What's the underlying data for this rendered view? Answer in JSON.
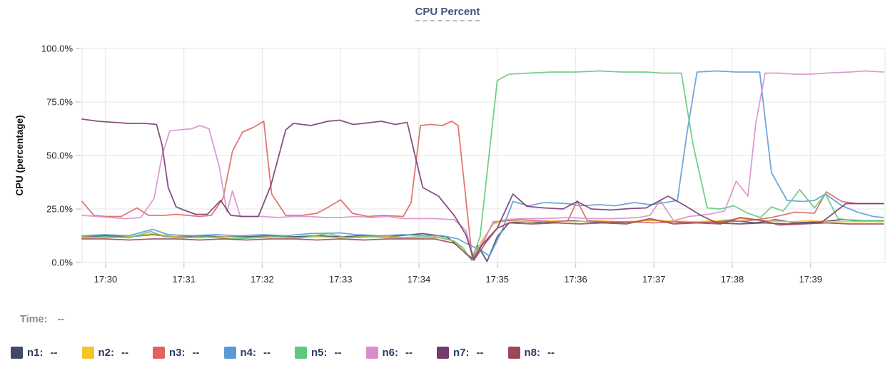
{
  "title": {
    "text": "CPU Percent"
  },
  "time_row": {
    "label": "Time:",
    "value": "--"
  },
  "legend": {
    "items": [
      {
        "label": "n1:",
        "value": "--"
      },
      {
        "label": "n2:",
        "value": "--"
      },
      {
        "label": "n3:",
        "value": "--"
      },
      {
        "label": "n4:",
        "value": "--"
      },
      {
        "label": "n5:",
        "value": "--"
      },
      {
        "label": "n6:",
        "value": "--"
      },
      {
        "label": "n7:",
        "value": "--"
      },
      {
        "label": "n8:",
        "value": "--"
      }
    ]
  },
  "chart_data": {
    "type": "line",
    "title": "CPU Percent",
    "xlabel": "",
    "ylabel": "CPU (percentage)",
    "ylim": [
      0,
      100
    ],
    "y_tick_values": [
      0,
      25,
      50,
      75,
      100
    ],
    "y_ticks": [
      "0.0%",
      "25.0%",
      "50.0%",
      "75.0%",
      "100.0%"
    ],
    "x_ticks": [
      "17:30",
      "17:31",
      "17:32",
      "17:33",
      "17:34",
      "17:35",
      "17:36",
      "17:37",
      "17:38",
      "17:39"
    ],
    "x_tick_minutes": [
      0,
      1,
      2,
      3,
      4,
      5,
      6,
      7,
      8,
      9
    ],
    "xlim_minutes": [
      -0.3,
      9.95
    ],
    "x_unit": "minutes after 17:30",
    "grid": true,
    "colors": {
      "grid": "#e9e9ec",
      "tick": "#cfd0d6",
      "background": "#ffffff"
    },
    "series": [
      {
        "name": "n1",
        "color": "#3f4b66",
        "x": [
          -0.3,
          0,
          0.3,
          0.6,
          0.9,
          1.2,
          1.5,
          1.8,
          2.1,
          2.4,
          2.7,
          3.0,
          3.3,
          3.6,
          3.9,
          4.05,
          4.35,
          4.5,
          4.6,
          4.68,
          4.75,
          4.87,
          5.0,
          5.15,
          5.35,
          5.6,
          5.9,
          6.2,
          6.5,
          6.8,
          6.9,
          7.1,
          7.4,
          7.7,
          8.0,
          8.3,
          8.55,
          8.8,
          9.1,
          9.4,
          9.7,
          9.93
        ],
        "y": [
          12,
          12.5,
          12,
          13,
          12,
          12.5,
          12,
          12,
          12.5,
          12,
          12.5,
          12,
          12.5,
          12,
          13,
          13.5,
          12,
          8,
          4,
          2,
          8,
          0.5,
          12,
          18.5,
          19,
          18.5,
          19.5,
          19,
          18.5,
          19,
          19.8,
          19.5,
          18.5,
          19,
          19.5,
          18.5,
          20,
          18.5,
          19,
          20,
          19.5,
          19.5
        ]
      },
      {
        "name": "n2",
        "color": "#f5c425",
        "x": [
          -0.3,
          0,
          0.3,
          0.6,
          0.9,
          1.2,
          1.5,
          1.8,
          2.1,
          2.4,
          2.7,
          3.0,
          3.3,
          3.6,
          3.9,
          4.2,
          4.45,
          4.67,
          4.8,
          4.95,
          5.1,
          5.4,
          5.7,
          6.0,
          6.3,
          6.6,
          6.9,
          7.2,
          7.5,
          7.8,
          8.1,
          8.4,
          8.7,
          9.0,
          9.3,
          9.6,
          9.93
        ],
        "y": [
          12,
          11.5,
          12,
          13.5,
          12,
          11.5,
          12,
          11.5,
          12,
          11.5,
          12,
          11.5,
          12,
          12,
          11.5,
          12,
          10,
          1.5,
          10,
          18,
          19.5,
          19,
          19.5,
          19,
          19.5,
          19,
          19.5,
          19.5,
          19,
          19.5,
          20.5,
          19.5,
          19,
          19.5,
          19,
          19,
          19
        ]
      },
      {
        "name": "n3",
        "color": "#e0635f",
        "x": [
          -0.3,
          -0.15,
          0.0,
          0.2,
          0.4,
          0.55,
          0.75,
          0.9,
          1.05,
          1.2,
          1.35,
          1.5,
          1.62,
          1.75,
          1.88,
          2.02,
          2.12,
          2.3,
          2.5,
          2.7,
          2.85,
          3.0,
          3.15,
          3.35,
          3.55,
          3.8,
          3.9,
          4.02,
          4.15,
          4.3,
          4.42,
          4.5,
          4.68,
          4.8,
          4.95,
          5.1,
          5.3,
          5.5,
          5.7,
          5.9,
          6.02,
          6.15,
          6.4,
          6.7,
          7.0,
          7.3,
          7.6,
          7.9,
          8.2,
          8.5,
          8.8,
          9.05,
          9.2,
          9.4,
          9.6,
          9.93
        ],
        "y": [
          28.5,
          22,
          21.5,
          21.5,
          25.5,
          22,
          22,
          22.5,
          22,
          21.5,
          22,
          30,
          52,
          61,
          63,
          66,
          32,
          22,
          22,
          23,
          26,
          29.3,
          23,
          21.5,
          22,
          21.5,
          28,
          64,
          64.5,
          64,
          66,
          64,
          2,
          8,
          19,
          19.5,
          20,
          19.5,
          19,
          19.5,
          28.8,
          19.5,
          19,
          19,
          18.5,
          19,
          18.5,
          19,
          19.5,
          21,
          23.5,
          23,
          33,
          28.5,
          27.5,
          27.5
        ]
      },
      {
        "name": "n4",
        "color": "#5b9bd5",
        "x": [
          -0.3,
          0,
          0.3,
          0.6,
          0.8,
          1.1,
          1.4,
          1.7,
          2.0,
          2.3,
          2.6,
          3.0,
          3.2,
          3.5,
          3.8,
          4.1,
          4.3,
          4.5,
          4.65,
          4.78,
          4.9,
          5.05,
          5.2,
          5.4,
          5.6,
          5.9,
          6.05,
          6.3,
          6.5,
          6.75,
          6.95,
          7.15,
          7.3,
          7.42,
          7.55,
          7.8,
          8.05,
          8.2,
          8.35,
          8.5,
          8.7,
          8.9,
          9.05,
          9.19,
          9.4,
          9.6,
          9.8,
          9.93
        ],
        "y": [
          12.5,
          13,
          12.5,
          15.5,
          13,
          12.5,
          13,
          12.5,
          13,
          12.5,
          13.5,
          13.8,
          13,
          12.5,
          13,
          12.5,
          12.5,
          11,
          8,
          6,
          3,
          14,
          28.5,
          26.5,
          28,
          27.5,
          26.5,
          27,
          26.5,
          28,
          27,
          28,
          29,
          60,
          89,
          89.5,
          89,
          89,
          89,
          42,
          29,
          28.5,
          29,
          32,
          26.5,
          23.5,
          21.5,
          21
        ]
      },
      {
        "name": "n5",
        "color": "#60c87e",
        "x": [
          -0.3,
          0,
          0.3,
          0.58,
          0.75,
          1.0,
          1.3,
          1.6,
          1.9,
          2.2,
          2.5,
          2.84,
          3.1,
          3.4,
          3.7,
          4.0,
          4.3,
          4.45,
          4.56,
          4.67,
          4.78,
          4.88,
          5.0,
          5.15,
          5.4,
          5.7,
          6.0,
          6.3,
          6.6,
          6.9,
          7.1,
          7.35,
          7.5,
          7.68,
          7.85,
          8.02,
          8.2,
          8.36,
          8.5,
          8.65,
          8.86,
          9.05,
          9.19,
          9.35,
          9.55,
          9.75,
          9.93
        ],
        "y": [
          11.5,
          12,
          11.5,
          14.5,
          12,
          11.5,
          12,
          11,
          11.5,
          12,
          11.5,
          13.5,
          11.5,
          12,
          11.5,
          12,
          11.5,
          10,
          7,
          1,
          12,
          45,
          85,
          88,
          88.5,
          89,
          89,
          89.5,
          89,
          89,
          88.5,
          88.5,
          55,
          25.5,
          25,
          26.5,
          23,
          21,
          26,
          24,
          34,
          25.5,
          32,
          20.5,
          19.5,
          19.5,
          19.5
        ]
      },
      {
        "name": "n6",
        "color": "#d78fcc",
        "x": [
          -0.3,
          -0.1,
          0.05,
          0.25,
          0.45,
          0.62,
          0.72,
          0.82,
          0.95,
          1.1,
          1.2,
          1.32,
          1.45,
          1.55,
          1.62,
          1.72,
          1.85,
          2.0,
          2.2,
          2.4,
          2.6,
          2.8,
          3.0,
          3.2,
          3.4,
          3.6,
          3.8,
          4.0,
          4.2,
          4.45,
          4.6,
          4.7,
          4.82,
          4.95,
          5.1,
          5.3,
          5.6,
          5.9,
          6.2,
          6.5,
          6.8,
          6.95,
          7.08,
          7.25,
          7.45,
          7.7,
          7.9,
          8.05,
          8.2,
          8.3,
          8.42,
          8.6,
          8.8,
          9.0,
          9.2,
          9.5,
          9.7,
          9.93
        ],
        "y": [
          22,
          21.5,
          21,
          20.5,
          21,
          30,
          50,
          61.5,
          62,
          62.5,
          64,
          62.5,
          45,
          23.5,
          33.5,
          21.5,
          21.5,
          21.5,
          21,
          21.5,
          21.5,
          21,
          21,
          21.5,
          21,
          21.5,
          20.5,
          20.5,
          20.5,
          20,
          15,
          2,
          10,
          18.5,
          20,
          20.5,
          20.5,
          21,
          20.5,
          20.5,
          21,
          22,
          29,
          19.5,
          21.5,
          22.5,
          24,
          38,
          31,
          65,
          88.5,
          88.5,
          88,
          88,
          88.5,
          89,
          89.5,
          89
        ]
      },
      {
        "name": "n7",
        "color": "#743a6d",
        "x": [
          -0.3,
          -0.1,
          0.1,
          0.3,
          0.5,
          0.65,
          0.72,
          0.8,
          0.9,
          1.0,
          1.15,
          1.3,
          1.47,
          1.6,
          1.75,
          1.95,
          2.11,
          2.3,
          2.4,
          2.62,
          2.84,
          2.99,
          3.16,
          3.29,
          3.52,
          3.7,
          3.85,
          3.95,
          4.05,
          4.25,
          4.45,
          4.6,
          4.7,
          4.8,
          5.0,
          5.2,
          5.38,
          5.6,
          5.84,
          6.02,
          6.2,
          6.45,
          6.7,
          6.9,
          7.18,
          7.4,
          7.6,
          7.8,
          8.1,
          8.4,
          8.7,
          9.0,
          9.15,
          9.45,
          9.7,
          9.93
        ],
        "y": [
          67,
          66,
          65.5,
          65,
          65,
          64.5,
          55,
          35,
          26,
          24.5,
          22.5,
          22.5,
          29,
          22,
          21.5,
          21.5,
          36,
          62,
          65,
          64,
          66,
          66.5,
          64.5,
          65,
          66,
          64.5,
          65.5,
          50,
          35,
          31,
          22,
          13,
          1.5,
          8,
          16,
          32,
          26.2,
          25.5,
          25,
          28.5,
          25,
          24.5,
          25.2,
          25.5,
          31,
          26.5,
          22,
          18.5,
          18,
          18.5,
          18,
          18.5,
          19,
          27.5,
          27.5,
          27.5
        ]
      },
      {
        "name": "n8",
        "color": "#9e4757",
        "x": [
          -0.3,
          0,
          0.3,
          0.6,
          0.9,
          1.2,
          1.5,
          1.8,
          2.1,
          2.4,
          2.7,
          3.0,
          3.3,
          3.6,
          3.9,
          4.2,
          4.45,
          4.7,
          4.85,
          5.0,
          5.15,
          5.45,
          5.75,
          6.05,
          6.35,
          6.65,
          6.95,
          7.25,
          7.55,
          7.85,
          8.1,
          8.4,
          8.6,
          8.9,
          9.2,
          9.5,
          9.75,
          9.93
        ],
        "y": [
          11,
          11,
          10.5,
          11,
          11,
          10.5,
          11,
          10.5,
          11,
          11,
          10.5,
          11,
          10.5,
          11,
          11,
          11,
          9,
          1,
          9,
          16,
          18.5,
          18,
          18.5,
          18,
          18.5,
          18,
          20.5,
          18,
          18.5,
          18,
          21,
          19.5,
          17.5,
          18,
          18.5,
          18,
          18,
          18
        ]
      }
    ]
  }
}
